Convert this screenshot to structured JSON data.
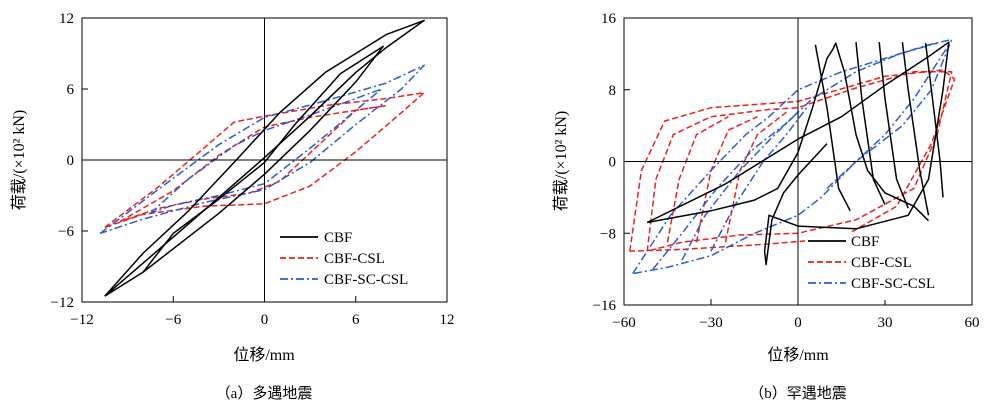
{
  "colors": {
    "CBF": "#000000",
    "CBF-CSL": "#e8221c",
    "CBF-SC-CSL": "#2a5bd7"
  },
  "chart_data": [
    {
      "type": "line",
      "caption": "（a）多遇地震",
      "xlabel": "位移/mm",
      "ylabel": "荷载/(×10² kN)",
      "xlim": [
        -12,
        12
      ],
      "ylim": [
        -12,
        12
      ],
      "xticks": [
        "−12",
        "−6",
        "0",
        "6",
        "12"
      ],
      "yticks": [
        "−12",
        "−6",
        "0",
        "6",
        "12"
      ],
      "legend_position": "bottom-right",
      "series": [
        {
          "name": "CBF",
          "style": "solid",
          "loops": [
            [
              [
                -10.5,
                -11.5
              ],
              [
                -8,
                -9.5
              ],
              [
                -3,
                -4.5
              ],
              [
                0,
                -1.2
              ],
              [
                3,
                2.5
              ],
              [
                6,
                6.6
              ],
              [
                7.8,
                9.6
              ],
              [
                5,
                7.3
              ],
              [
                2,
                3
              ],
              [
                0,
                -0.2
              ],
              [
                -3,
                -3.3
              ],
              [
                -6,
                -6.2
              ],
              [
                -8,
                -9.5
              ]
            ],
            [
              [
                -10.5,
                -11.5
              ],
              [
                -5,
                -5.4
              ],
              [
                0,
                0.2
              ],
              [
                3,
                3.7
              ],
              [
                6,
                7.4
              ],
              [
                8,
                9.5
              ],
              [
                10.5,
                11.8
              ],
              [
                8,
                10.6
              ],
              [
                4,
                7.4
              ],
              [
                1,
                4
              ],
              [
                -2,
                -0.2
              ],
              [
                -5,
                -4.3
              ],
              [
                -8,
                -7.9
              ],
              [
                -10.5,
                -11.5
              ]
            ]
          ]
        },
        {
          "name": "CBF-CSL",
          "style": "dashed",
          "loops": [
            [
              [
                -9.5,
                -5.2
              ],
              [
                -6,
                -2.6
              ],
              [
                -3,
                0.4
              ],
              [
                -1,
                2
              ],
              [
                0,
                2.8
              ],
              [
                3,
                3.6
              ],
              [
                6,
                4.2
              ],
              [
                8,
                4.6
              ],
              [
                6,
                4.2
              ],
              [
                3,
                0.6
              ],
              [
                1,
                -1.8
              ],
              [
                -1,
                -2.8
              ],
              [
                -4,
                -3.3
              ],
              [
                -7,
                -4.1
              ],
              [
                -9.5,
                -5.2
              ]
            ],
            [
              [
                -10.5,
                -5.7
              ],
              [
                -7,
                -2.3
              ],
              [
                -4,
                1
              ],
              [
                -2,
                3.2
              ],
              [
                0,
                3.7
              ],
              [
                4,
                4.6
              ],
              [
                8,
                5.2
              ],
              [
                10.5,
                5.7
              ],
              [
                9,
                4
              ],
              [
                6,
                0.7
              ],
              [
                3,
                -2.2
              ],
              [
                0,
                -3.7
              ],
              [
                -4,
                -3.9
              ],
              [
                -8,
                -4.6
              ],
              [
                -10.5,
                -5.7
              ]
            ]
          ]
        },
        {
          "name": "CBF-SC-CSL",
          "style": "dashdot",
          "loops": [
            [
              [
                -7.5,
                -4.5
              ],
              [
                -5,
                -1.6
              ],
              [
                -2,
                1.2
              ],
              [
                0,
                2.5
              ],
              [
                3,
                3.8
              ],
              [
                6,
                5.2
              ],
              [
                7.7,
                6
              ],
              [
                6,
                4.2
              ],
              [
                3,
                1
              ],
              [
                0,
                -2
              ],
              [
                -3,
                -3
              ],
              [
                -6,
                -3.8
              ],
              [
                -7.5,
                -4.5
              ]
            ],
            [
              [
                -10.8,
                -6.2
              ],
              [
                -7,
                -2.5
              ],
              [
                -3,
                1.3
              ],
              [
                0,
                3.6
              ],
              [
                4,
                5
              ],
              [
                8,
                6.5
              ],
              [
                10.5,
                8
              ],
              [
                9,
                6
              ],
              [
                6,
                3
              ],
              [
                3,
                -0.2
              ],
              [
                0,
                -2.5
              ],
              [
                -4,
                -3.6
              ],
              [
                -8,
                -5
              ],
              [
                -10.8,
                -6.2
              ]
            ]
          ]
        }
      ]
    },
    {
      "type": "line",
      "caption": "（b）罕遇地震",
      "xlabel": "位移/mm",
      "ylabel": "荷载/(×10² kN)",
      "xlim": [
        -60,
        60
      ],
      "ylim": [
        -16,
        16
      ],
      "xticks": [
        "−60",
        "−30",
        "0",
        "30",
        "60"
      ],
      "yticks": [
        "−16",
        "−8",
        "0",
        "8",
        "16"
      ],
      "legend_position": "bottom-right",
      "series": [
        {
          "name": "CBF",
          "style": "solid",
          "loops": [
            [
              [
                -52,
                -6.8
              ],
              [
                -30,
                -5.5
              ],
              [
                -15,
                -4.3
              ],
              [
                -7,
                -3
              ],
              [
                0,
                1
              ],
              [
                5,
                6
              ],
              [
                10,
                11.5
              ],
              [
                12,
                12.5
              ],
              [
                13,
                13.2
              ],
              [
                16,
                10
              ],
              [
                20,
                3
              ],
              [
                24,
                -1
              ],
              [
                30,
                -3.5
              ],
              [
                40,
                -5
              ],
              [
                45,
                -6.6
              ]
            ],
            [
              [
                -52,
                -6.8
              ],
              [
                -25,
                -2.5
              ],
              [
                0,
                2.5
              ],
              [
                15,
                5
              ],
              [
                30,
                8.5
              ],
              [
                45,
                11.7
              ],
              [
                52,
                13.3
              ],
              [
                50,
                8
              ],
              [
                45,
                -2
              ],
              [
                38,
                -6
              ],
              [
                20,
                -7.5
              ],
              [
                0,
                -7.2
              ],
              [
                -10,
                -6
              ],
              [
                -11.5,
                -10
              ],
              [
                -11,
                -11.5
              ],
              [
                -9,
                -6.5
              ],
              [
                -5,
                -3.5
              ],
              [
                0,
                -1.5
              ],
              [
                10,
                2
              ]
            ],
            [
              [
                6,
                13
              ],
              [
                10,
                6
              ],
              [
                14,
                -3
              ],
              [
                18,
                -5.5
              ]
            ],
            [
              [
                20,
                13.3
              ],
              [
                22,
                7
              ],
              [
                26,
                -2
              ],
              [
                30,
                -4.8
              ]
            ],
            [
              [
                28,
                13.3
              ],
              [
                30,
                7
              ],
              [
                34,
                -2
              ],
              [
                38,
                -5.2
              ]
            ],
            [
              [
                36,
                13.3
              ],
              [
                38,
                8
              ],
              [
                42,
                -1
              ],
              [
                45,
                -6
              ]
            ],
            [
              [
                44,
                13.2
              ],
              [
                46,
                8
              ],
              [
                49,
                0
              ],
              [
                50,
                -4
              ]
            ]
          ]
        },
        {
          "name": "CBF-CSL",
          "style": "dashed",
          "loops": [
            [
              [
                -52,
                -10
              ],
              [
                -49,
                -2
              ],
              [
                -43,
                3
              ],
              [
                -30,
                5
              ],
              [
                -10,
                5.8
              ],
              [
                0,
                6
              ],
              [
                20,
                8.2
              ],
              [
                40,
                10
              ],
              [
                53,
                10
              ],
              [
                48,
                3
              ],
              [
                40,
                -3
              ],
              [
                20,
                -6.5
              ],
              [
                0,
                -8
              ],
              [
                -20,
                -8.2
              ],
              [
                -40,
                -9
              ],
              [
                -52,
                -10
              ]
            ],
            [
              [
                -58,
                -10
              ],
              [
                -54,
                -1
              ],
              [
                -46,
                4.5
              ],
              [
                -30,
                6
              ],
              [
                0,
                6.7
              ],
              [
                30,
                9.5
              ],
              [
                50,
                10.2
              ],
              [
                54,
                9.2
              ],
              [
                46,
                2
              ],
              [
                34,
                -5
              ],
              [
                15,
                -8.5
              ],
              [
                -10,
                -9.2
              ],
              [
                -40,
                -9.8
              ],
              [
                -58,
                -10
              ]
            ],
            [
              [
                -45,
                -9
              ],
              [
                -41,
                -2
              ],
              [
                -35,
                3
              ],
              [
                -24,
                5
              ]
            ],
            [
              [
                -35,
                -9
              ],
              [
                -30,
                -1
              ],
              [
                -24,
                3.5
              ],
              [
                -14,
                5
              ]
            ],
            [
              [
                -25,
                -9
              ],
              [
                -20,
                -1
              ],
              [
                -14,
                3
              ],
              [
                -4,
                5.5
              ]
            ]
          ]
        },
        {
          "name": "CBF-SC-CSL",
          "style": "dashdot",
          "loops": [
            [
              [
                -57,
                -12.5
              ],
              [
                -44,
                -6
              ],
              [
                -30,
                -1
              ],
              [
                -18,
                3
              ],
              [
                -10,
                5
              ],
              [
                0,
                8
              ],
              [
                15,
                10
              ],
              [
                30,
                11.5
              ],
              [
                45,
                13
              ],
              [
                53,
                13.6
              ],
              [
                46,
                8
              ],
              [
                36,
                4
              ],
              [
                20,
                0
              ],
              [
                8,
                -4
              ],
              [
                0,
                -6
              ],
              [
                -15,
                -8
              ],
              [
                -30,
                -10.5
              ],
              [
                -45,
                -11.8
              ],
              [
                -57,
                -12.5
              ]
            ],
            [
              [
                -50,
                -12
              ],
              [
                -40,
                -8
              ],
              [
                -28,
                -3
              ],
              [
                -15,
                1.5
              ],
              [
                -5,
                4
              ],
              [
                5,
                7
              ],
              [
                20,
                10
              ],
              [
                35,
                12
              ],
              [
                48,
                13.2
              ]
            ],
            [
              [
                -40,
                -11
              ],
              [
                -32,
                -6
              ],
              [
                -20,
                -1
              ],
              [
                -8,
                3
              ],
              [
                0,
                5.5
              ]
            ],
            [
              [
                -30,
                -10
              ],
              [
                -22,
                -5
              ],
              [
                -12,
                0
              ],
              [
                -4,
                3
              ],
              [
                3,
                6
              ]
            ],
            [
              [
                10,
                -3
              ],
              [
                20,
                0
              ],
              [
                30,
                3
              ],
              [
                40,
                7
              ],
              [
                52,
                13
              ]
            ]
          ]
        }
      ]
    }
  ]
}
